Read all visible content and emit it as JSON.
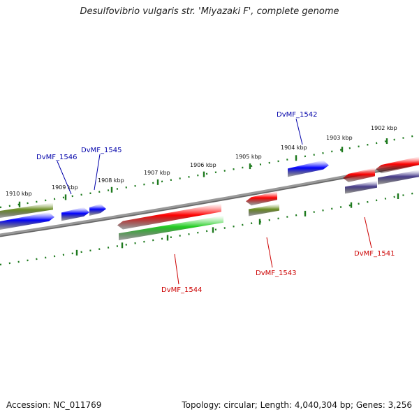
{
  "title": "Desulfovibrio vulgaris str. 'Miyazaki F', complete genome",
  "footer": {
    "accession": "Accession: NC_011769",
    "summary": "Topology: circular; Length: 4,040,304 bp; Genes: 3,256"
  },
  "colors": {
    "backbone": "#808080",
    "tick": "#1e7a1e",
    "blue_gene": "#0000ff",
    "red_gene": "#ff0000",
    "green_gene": "#22cc22",
    "olive_gene": "#6b8e23",
    "slate_gene": "#483d8b",
    "label_blue": "#0000aa",
    "label_red": "#cc0000"
  },
  "ruler": {
    "labels": [
      "1910 kbp",
      "1909 kbp",
      "1908 kbp",
      "1907 kbp",
      "1906 kbp",
      "1905 kbp",
      "1904 kbp",
      "1903 kbp",
      "1902 kbp"
    ]
  },
  "genes": [
    {
      "name": "DvMF_1546",
      "color": "label_blue"
    },
    {
      "name": "DvMF_1545",
      "color": "label_blue"
    },
    {
      "name": "DvMF_1542",
      "color": "label_blue"
    },
    {
      "name": "DvMF_1544",
      "color": "label_red"
    },
    {
      "name": "DvMF_1543",
      "color": "label_red"
    },
    {
      "name": "DvMF_1541",
      "color": "label_red"
    }
  ]
}
